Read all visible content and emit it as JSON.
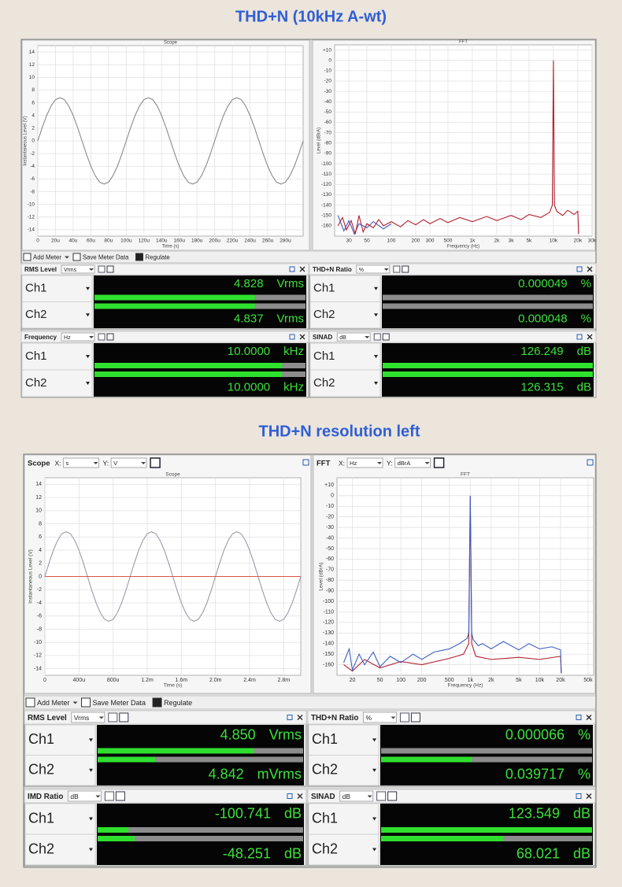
{
  "sections": [
    {
      "title": "THD+N (10kHz A-wt)",
      "scope": {
        "type": "line",
        "title": "Scope",
        "x_label": "Time (s)",
        "y_label": "Instantaneous Level (V)",
        "grid": true,
        "xlim": [
          0,
          300
        ],
        "xticks": [
          0,
          {
            "value": 20,
            "label": "20u"
          },
          {
            "value": 40,
            "label": "40u"
          },
          {
            "value": 60,
            "label": "60u"
          },
          {
            "value": 80,
            "label": "80u"
          },
          {
            "value": 100,
            "label": "100u"
          },
          {
            "value": 120,
            "label": "120u"
          },
          {
            "value": 140,
            "label": "140u"
          },
          {
            "value": 160,
            "label": "160u"
          },
          {
            "value": 180,
            "label": "180u"
          },
          {
            "value": 200,
            "label": "200u"
          },
          {
            "value": 220,
            "label": "220u"
          },
          {
            "value": 240,
            "label": "240u"
          },
          {
            "value": 260,
            "label": "260u"
          },
          {
            "value": 280,
            "label": "280u"
          }
        ],
        "ylim": [
          -15,
          15
        ],
        "yticks": [
          14,
          12,
          10,
          8,
          6,
          4,
          2,
          0,
          -2,
          -4,
          -6,
          -8,
          -10,
          -12,
          -14
        ],
        "series": [
          {
            "color": "#8a8a8a",
            "x": [
              0,
              5,
              10,
              15,
              20,
              25,
              30,
              35,
              40,
              45,
              50,
              55,
              60,
              65,
              70,
              75,
              80,
              85,
              90,
              95,
              100,
              105,
              110,
              115,
              120,
              125,
              130,
              135,
              140,
              145,
              150,
              155,
              160,
              165,
              170,
              175,
              180,
              185,
              190,
              195,
              200,
              205,
              210,
              215,
              220,
              225,
              230,
              235,
              240,
              245,
              250,
              255,
              260,
              265,
              270,
              275,
              280,
              285,
              290,
              295,
              300
            ],
            "values": [
              0,
              2.1,
              4,
              5.5,
              6.5,
              6.8,
              6.5,
              5.5,
              4,
              2.1,
              0,
              -2.1,
              -4,
              -5.5,
              -6.5,
              -6.8,
              -6.5,
              -5.5,
              -4,
              -2.1,
              0,
              2.1,
              4,
              5.5,
              6.5,
              6.8,
              6.5,
              5.5,
              4,
              2.1,
              0,
              -2.1,
              -4,
              -5.5,
              -6.5,
              -6.8,
              -6.5,
              -5.5,
              -4,
              -2.1,
              0,
              2.1,
              4,
              5.5,
              6.5,
              6.8,
              6.5,
              5.5,
              4,
              2.1,
              0,
              -2.1,
              -4,
              -5.5,
              -6.5,
              -6.8,
              -6.5,
              -5.5,
              -4,
              -2.1,
              0
            ]
          }
        ]
      },
      "fft": {
        "type": "line",
        "title": "FFT",
        "x_label": "Frequency (Hz)",
        "y_label": "Level (dBrA)",
        "grid": true,
        "xscale": "log",
        "xlim": [
          20,
          30000
        ],
        "xticks": [
          30,
          50,
          100,
          200,
          300,
          500,
          {
            "value": 1000,
            "label": "1k"
          },
          {
            "value": 2000,
            "label": "2k"
          },
          {
            "value": 3000,
            "label": "3k"
          },
          {
            "value": 5000,
            "label": "5k"
          },
          {
            "value": 10000,
            "label": "10k"
          },
          {
            "value": 20000,
            "label": "20k"
          },
          {
            "value": 30000,
            "label": "30k"
          }
        ],
        "ylim": [
          -170,
          15
        ],
        "yticks": [
          {
            "value": 10,
            "label": "+10"
          },
          0,
          -10,
          -20,
          -30,
          -40,
          -50,
          -60,
          -70,
          -80,
          -90,
          -100,
          -110,
          -120,
          -130,
          -140,
          -150,
          -160
        ],
        "series": [
          {
            "color": "#3d5fc4",
            "x": [
              22,
              26,
              30,
              35,
              40,
              50,
              60,
              80,
              100
            ],
            "values": [
              -150,
              -165,
              -155,
              -168,
              -158,
              -162,
              -156,
              -163,
              -158
            ]
          },
          {
            "color": "#b3202e",
            "x": [
              22,
              25,
              28,
              32,
              36,
              40,
              45,
              50,
              60,
              70,
              80,
              100,
              130,
              160,
              200,
              250,
              300,
              400,
              500,
              700,
              1000,
              1500,
              2000,
              3000,
              4000,
              5000,
              7000,
              9000,
              9700,
              10000,
              10300,
              11000,
              13000,
              15000,
              18000,
              20000,
              20500
            ],
            "values": [
              -160,
              -152,
              -164,
              -155,
              -168,
              -150,
              -166,
              -158,
              -162,
              -154,
              -160,
              -156,
              -161,
              -155,
              -159,
              -154,
              -158,
              -153,
              -157,
              -152,
              -156,
              -151,
              -155,
              -150,
              -154,
              -149,
              -152,
              -147,
              -140,
              0,
              -140,
              -146,
              -150,
              -145,
              -149,
              -146,
              -168
            ]
          }
        ]
      },
      "toolbar": [
        "Add Meter",
        "Save Meter Data",
        "Regulate"
      ],
      "meters": [
        {
          "title": "RMS Level",
          "unit_select": "Vrms",
          "channels": [
            {
              "name": "Ch1",
              "value": "4.828",
              "unit": "Vrms",
              "bar": 0.76
            },
            {
              "name": "Ch2",
              "value": "4.837",
              "unit": "Vrms",
              "bar": 0.76
            }
          ]
        },
        {
          "title": "THD+N Ratio",
          "unit_select": "%",
          "channels": [
            {
              "name": "Ch1",
              "value": "0.000049",
              "unit": "%",
              "bar": 0
            },
            {
              "name": "Ch2",
              "value": "0.000048",
              "unit": "%",
              "bar": 0
            }
          ]
        },
        {
          "title": "Frequency",
          "unit_select": "Hz",
          "channels": [
            {
              "name": "Ch1",
              "value": "10.0000",
              "unit": "kHz",
              "bar": 0.89
            },
            {
              "name": "Ch2",
              "value": "10.0000",
              "unit": "kHz",
              "bar": 0.89
            }
          ]
        },
        {
          "title": "SINAD",
          "unit_select": "dB",
          "channels": [
            {
              "name": "Ch1",
              "value": "126.249",
              "unit": "dB",
              "bar": 1
            },
            {
              "name": "Ch2",
              "value": "126.315",
              "unit": "dB",
              "bar": 1
            }
          ]
        }
      ]
    },
    {
      "title": "THD+N resolution left",
      "scope_header": {
        "title": "Scope",
        "x_prefix": "X:",
        "x_unit": "s",
        "y_prefix": "Y:",
        "y_unit": "V"
      },
      "fft_header": {
        "title": "FFT",
        "x_prefix": "X:",
        "x_unit": "Hz",
        "y_prefix": "Y:",
        "y_unit": "dBrA"
      },
      "scope": {
        "type": "line",
        "title": "Scope",
        "x_label": "Time (s)",
        "y_label": "Instantaneous Level (V)",
        "grid": true,
        "xlim": [
          0,
          3000
        ],
        "xticks": [
          0,
          {
            "value": 400,
            "label": "400u"
          },
          {
            "value": 800,
            "label": "800u"
          },
          {
            "value": 1200,
            "label": "1.2m"
          },
          {
            "value": 1600,
            "label": "1.6m"
          },
          {
            "value": 2000,
            "label": "2.0m"
          },
          {
            "value": 2400,
            "label": "2.4m"
          },
          {
            "value": 2800,
            "label": "2.8m"
          }
        ],
        "ylim": [
          -15,
          15
        ],
        "yticks": [
          14,
          12,
          10,
          8,
          6,
          4,
          2,
          0,
          -2,
          -4,
          -6,
          -8,
          -10,
          -12,
          -14
        ],
        "series": [
          {
            "color": "#9a9aa8",
            "x": [
              0,
              50,
              100,
              150,
              200,
              250,
              300,
              350,
              400,
              450,
              500,
              550,
              600,
              650,
              700,
              750,
              800,
              850,
              900,
              950,
              1000,
              1050,
              1100,
              1150,
              1200,
              1250,
              1300,
              1350,
              1400,
              1450,
              1500,
              1550,
              1600,
              1650,
              1700,
              1750,
              1800,
              1850,
              1900,
              1950,
              2000,
              2050,
              2100,
              2150,
              2200,
              2250,
              2300,
              2350,
              2400,
              2450,
              2500,
              2550,
              2600,
              2650,
              2700,
              2750,
              2800,
              2850,
              2900,
              2950,
              3000
            ],
            "values": [
              0,
              2.1,
              4,
              5.5,
              6.5,
              6.8,
              6.5,
              5.5,
              4,
              2.1,
              0,
              -2.1,
              -4,
              -5.5,
              -6.5,
              -6.8,
              -6.5,
              -5.5,
              -4,
              -2.1,
              0,
              2.1,
              4,
              5.5,
              6.5,
              6.8,
              6.5,
              5.5,
              4,
              2.1,
              0,
              -2.1,
              -4,
              -5.5,
              -6.5,
              -6.8,
              -6.5,
              -5.5,
              -4,
              -2.1,
              0,
              2.1,
              4,
              5.5,
              6.5,
              6.8,
              6.5,
              5.5,
              4,
              2.1,
              0,
              -2.1,
              -4,
              -5.5,
              -6.5,
              -6.8,
              -6.5,
              -5.5,
              -4,
              -2.1,
              0
            ]
          },
          {
            "color": "#d9534f",
            "x": [
              0,
              3000
            ],
            "values": [
              0,
              0
            ]
          }
        ]
      },
      "fft": {
        "type": "line",
        "title": "FFT",
        "x_label": "Frequency (Hz)",
        "y_label": "Level (dBrA)",
        "grid": true,
        "xscale": "log",
        "xlim": [
          12,
          60000
        ],
        "xticks": [
          20,
          50,
          100,
          200,
          500,
          {
            "value": 1000,
            "label": "1k"
          },
          {
            "value": 2000,
            "label": "2k"
          },
          {
            "value": 5000,
            "label": "5k"
          },
          {
            "value": 10000,
            "label": "10k"
          },
          {
            "value": 20000,
            "label": "20k"
          },
          {
            "value": 50000,
            "label": "50k"
          }
        ],
        "ylim": [
          -170,
          17
        ],
        "yticks": [
          {
            "value": 10,
            "label": "+10"
          },
          0,
          -10,
          -20,
          -30,
          -40,
          -50,
          -60,
          -70,
          -80,
          -90,
          -100,
          -110,
          -120,
          -130,
          -140,
          -150,
          -160
        ],
        "series": [
          {
            "color": "#b3202e",
            "x": [
              15,
              20,
              30,
              50,
              100,
              200,
              500,
              800,
              950,
              1000,
              1050,
              1200,
              2000,
              5000,
              10000,
              20000,
              20500
            ],
            "values": [
              -160,
              -166,
              -155,
              -163,
              -157,
              -160,
              -154,
              -150,
              -140,
              0,
              -140,
              -152,
              -155,
              -153,
              -155,
              -152,
              -168
            ]
          },
          {
            "color": "#3d5fc4",
            "x": [
              15,
              18,
              20,
              25,
              30,
              40,
              50,
              70,
              100,
              150,
              200,
              300,
              500,
              700,
              900,
              950,
              1000,
              1050,
              1100,
              1300,
              1500,
              2000,
              3000,
              5000,
              7000,
              10000,
              15000,
              20000,
              20500
            ],
            "values": [
              -158,
              -145,
              -165,
              -150,
              -160,
              -148,
              -162,
              -152,
              -158,
              -150,
              -155,
              -148,
              -145,
              -140,
              -135,
              -130,
              0,
              -130,
              -136,
              -142,
              -140,
              -145,
              -138,
              -146,
              -140,
              -145,
              -143,
              -146,
              -168
            ]
          }
        ]
      },
      "toolbar": [
        "Add Meter",
        "Save Meter Data",
        "Regulate"
      ],
      "meters": [
        {
          "title": "RMS Level",
          "unit_select": "Vrms",
          "channels": [
            {
              "name": "Ch1",
              "value": "4.850",
              "unit": "Vrms",
              "bar": 0.76
            },
            {
              "name": "Ch2",
              "value": "4.842",
              "unit": "mVrms",
              "bar": 0.28
            }
          ]
        },
        {
          "title": "THD+N Ratio",
          "unit_select": "%",
          "channels": [
            {
              "name": "Ch1",
              "value": "0.000066",
              "unit": "%",
              "bar": 0
            },
            {
              "name": "Ch2",
              "value": "0.039717",
              "unit": "%",
              "bar": 0.43
            }
          ]
        },
        {
          "title": "IMD Ratio",
          "unit_select": "dB",
          "channels": [
            {
              "name": "Ch1",
              "value": "-100.741",
              "unit": "dB",
              "bar": 0.15
            },
            {
              "name": "Ch2",
              "value": "-48.251",
              "unit": "dB",
              "bar": 0.18
            }
          ]
        },
        {
          "title": "SINAD",
          "unit_select": "dB",
          "channels": [
            {
              "name": "Ch1",
              "value": "123.549",
              "unit": "dB",
              "bar": 1
            },
            {
              "name": "Ch2",
              "value": "68.021",
              "unit": "dB",
              "bar": 0.58
            }
          ]
        }
      ]
    }
  ]
}
